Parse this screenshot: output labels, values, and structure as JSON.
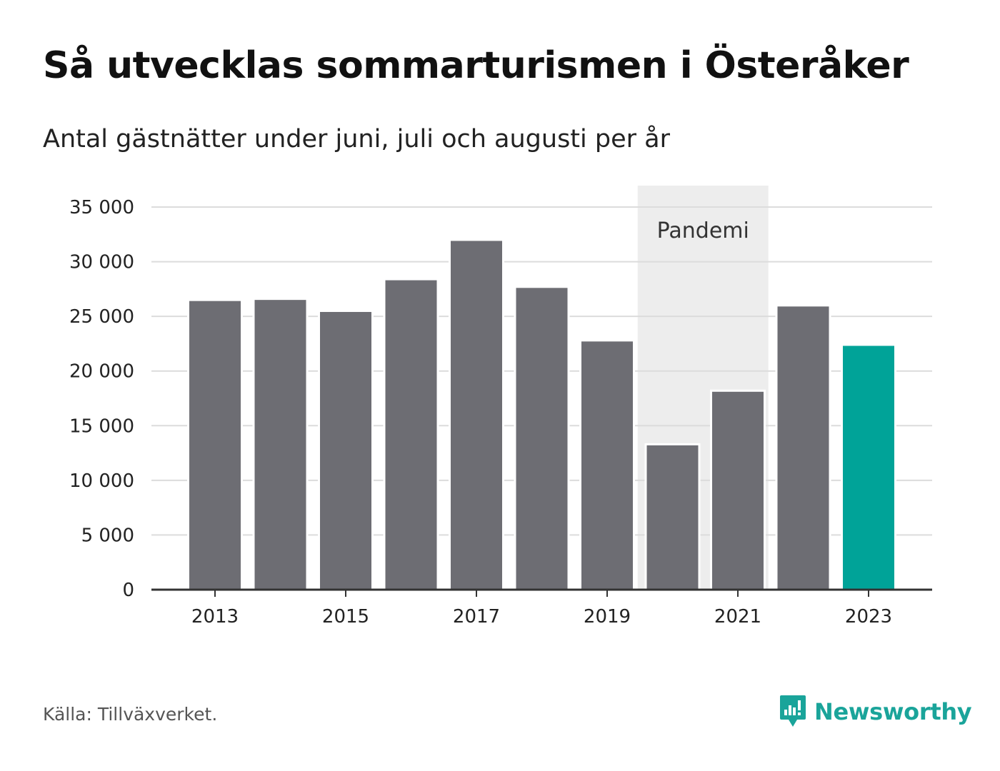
{
  "title": "Så utvecklas sommarturismen i Österåker",
  "subtitle": "Antal gästnätter under juni, juli och augusti per år",
  "source": "Källa: Tillväxverket.",
  "brand": {
    "name": "Newsworthy",
    "color": "#1aa49a"
  },
  "colors": {
    "bar": "#6d6d73",
    "highlight": "#00a398",
    "shade": "#ededed",
    "grid": "#dcdcdc",
    "axis": "#333333"
  },
  "chart_data": {
    "type": "bar",
    "categories": [
      "2013",
      "2014",
      "2015",
      "2016",
      "2017",
      "2018",
      "2019",
      "2020",
      "2021",
      "2022",
      "2023"
    ],
    "values": [
      26500,
      26600,
      25500,
      28400,
      32000,
      27700,
      22800,
      13300,
      18200,
      26000,
      22400
    ],
    "highlight_index": 10,
    "x_tick_labels": [
      "2013",
      "2015",
      "2017",
      "2019",
      "2021",
      "2023"
    ],
    "y_ticks": [
      0,
      5000,
      10000,
      15000,
      20000,
      25000,
      30000,
      35000
    ],
    "y_tick_labels": [
      "0",
      "5 000",
      "10 000",
      "15 000",
      "20 000",
      "25 000",
      "30 000",
      "35 000"
    ],
    "ylim": [
      0,
      35000
    ],
    "grid": true,
    "annotation": {
      "label": "Pandemi",
      "from": "2020",
      "to": "2021"
    },
    "xlabel": "",
    "ylabel": ""
  }
}
